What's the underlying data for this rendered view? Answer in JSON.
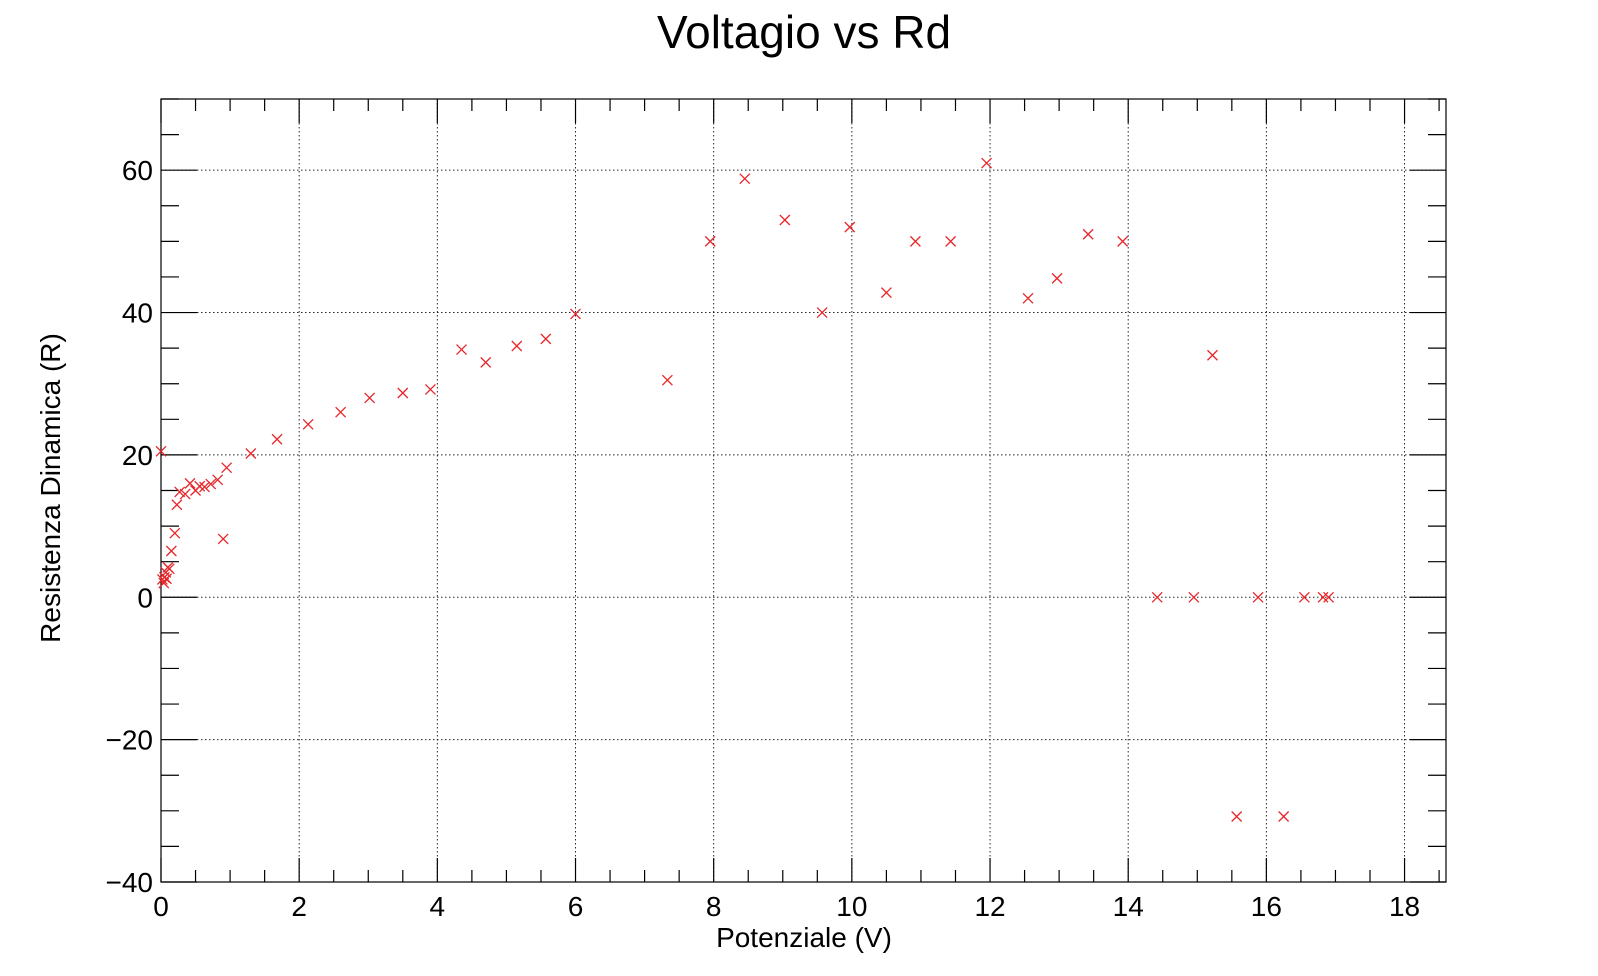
{
  "chart_data": {
    "type": "scatter",
    "title": "Voltagio vs Rd",
    "xlabel": "Potenziale (V)",
    "ylabel": "Resistenza Dinamica (R)",
    "xlim": [
      0,
      18.6
    ],
    "ylim": [
      -40,
      70
    ],
    "x_ticks": [
      0,
      2,
      4,
      6,
      8,
      10,
      12,
      14,
      16,
      18
    ],
    "y_ticks": [
      -40,
      -20,
      0,
      20,
      40,
      60
    ],
    "x_tick_labels": [
      "0",
      "2",
      "4",
      "6",
      "8",
      "10",
      "12",
      "14",
      "16",
      "18"
    ],
    "y_tick_labels": [
      "−40",
      "−20",
      "0",
      "20",
      "40",
      "60"
    ],
    "grid": true,
    "marker": "cross",
    "marker_color": "#e8262a",
    "series": [
      {
        "x": [
          0.0,
          0.02,
          0.04,
          0.05,
          0.07,
          0.08,
          0.1,
          0.12,
          0.15,
          0.2,
          0.23,
          0.27,
          0.35,
          0.42,
          0.5,
          0.56,
          0.63,
          0.72,
          0.82,
          0.9,
          0.95,
          1.3,
          1.68,
          2.13,
          2.6,
          3.02,
          3.5,
          3.9,
          4.35,
          4.7,
          5.15,
          5.57,
          6.0,
          7.33,
          7.95,
          8.45,
          9.03,
          9.57,
          9.97,
          10.5,
          10.92,
          11.43,
          11.95,
          12.55,
          12.97,
          13.42,
          13.92,
          14.42,
          14.95,
          15.22,
          15.57,
          15.88,
          16.25,
          16.55,
          16.82,
          16.9
        ],
        "y": [
          20.5,
          2.5,
          2.0,
          2.8,
          3.5,
          2.6,
          4.2,
          4.0,
          6.5,
          9.0,
          13.0,
          14.8,
          14.5,
          16.0,
          15.0,
          15.6,
          15.5,
          15.9,
          16.5,
          8.2,
          18.2,
          20.2,
          22.2,
          24.3,
          26.0,
          28.0,
          28.7,
          29.2,
          34.8,
          33.0,
          35.3,
          36.3,
          39.8,
          30.5,
          50.0,
          58.8,
          53.0,
          40.0,
          52.0,
          42.8,
          50.0,
          50.0,
          61.0,
          42.0,
          44.8,
          51.0,
          50.0,
          0.0,
          0.0,
          34.0,
          -30.8,
          0.0,
          -30.8,
          0.0,
          0.0,
          0.0
        ]
      }
    ]
  }
}
